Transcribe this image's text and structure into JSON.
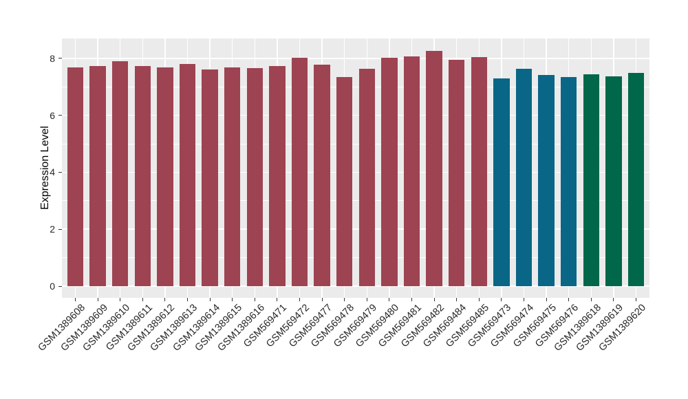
{
  "style": {
    "figure_bg": "#FFFFFF",
    "panel_bg": "#EBEBEB",
    "grid_color": "#FFFFFF",
    "tick_color": "#333333",
    "axis_text_color": "#262626",
    "axis_title_color": "#000000",
    "group_colors": [
      "#9E4352",
      "#0A6687",
      "#00674A"
    ]
  },
  "chart_data": {
    "type": "bar",
    "title": "",
    "xlabel": "",
    "ylabel": "Expression Level",
    "ylim": [
      0,
      8.7
    ],
    "y_ticks": [
      0,
      2,
      4,
      6,
      8
    ],
    "y_minor_ticks": [
      1,
      3,
      5,
      7
    ],
    "grid": "white major+minor gridlines on gray panel (ggplot style)",
    "legend": "none",
    "x_tick_rotation_deg": 45,
    "categories": [
      "GSM1389608",
      "GSM1389609",
      "GSM1389610",
      "GSM1389611",
      "GSM1389612",
      "GSM1389613",
      "GSM1389614",
      "GSM1389615",
      "GSM1389616",
      "GSM569471",
      "GSM569472",
      "GSM569477",
      "GSM569478",
      "GSM569479",
      "GSM569480",
      "GSM569481",
      "GSM569482",
      "GSM569484",
      "GSM569485",
      "GSM569473",
      "GSM569474",
      "GSM569475",
      "GSM569476",
      "GSM1389618",
      "GSM1389619",
      "GSM1389620"
    ],
    "values": [
      7.68,
      7.74,
      7.9,
      7.72,
      7.68,
      7.81,
      7.62,
      7.67,
      7.66,
      7.72,
      8.01,
      7.77,
      7.34,
      7.64,
      8.02,
      8.06,
      8.27,
      7.94,
      8.05,
      7.29,
      7.64,
      7.42,
      7.35,
      7.43,
      7.36,
      7.48
    ],
    "bar_colors": [
      "#9E4352",
      "#9E4352",
      "#9E4352",
      "#9E4352",
      "#9E4352",
      "#9E4352",
      "#9E4352",
      "#9E4352",
      "#9E4352",
      "#9E4352",
      "#9E4352",
      "#9E4352",
      "#9E4352",
      "#9E4352",
      "#9E4352",
      "#9E4352",
      "#9E4352",
      "#9E4352",
      "#9E4352",
      "#0A6687",
      "#0A6687",
      "#0A6687",
      "#0A6687",
      "#00674A",
      "#00674A",
      "#00674A"
    ]
  }
}
